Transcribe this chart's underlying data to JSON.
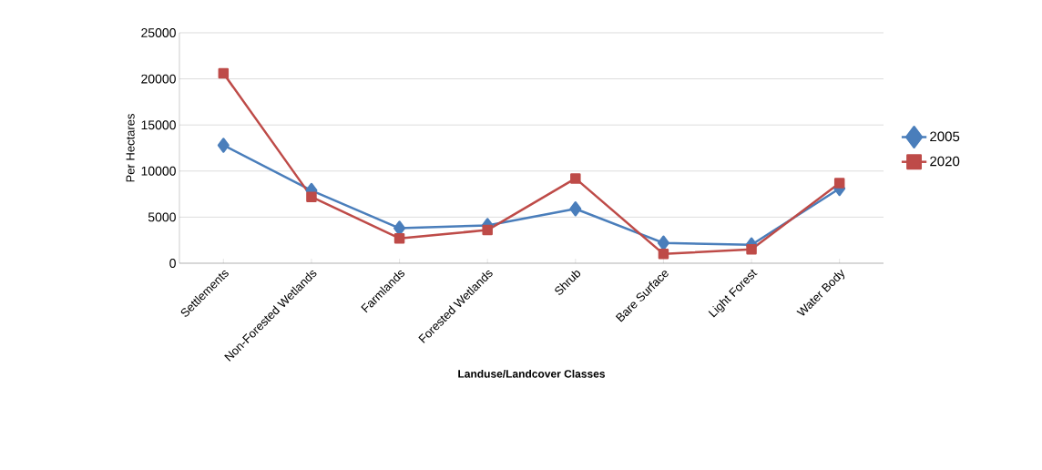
{
  "chart_data": {
    "type": "line",
    "xlabel": "Landuse/Landcover Classes",
    "ylabel": "Per Hectares",
    "categories": [
      "Settlements",
      "Non-Forested Wetlands",
      "Farmlands",
      "Forested Wetlands",
      "Shrub",
      "Bare Surface",
      "Light Forest",
      "Water Body"
    ],
    "series": [
      {
        "name": "2005",
        "color": "#4a7ebb",
        "marker": "diamond",
        "values": [
          12800,
          7900,
          3800,
          4100,
          5900,
          2200,
          2000,
          8100
        ]
      },
      {
        "name": "2020",
        "color": "#be4b48",
        "marker": "square",
        "values": [
          20600,
          7200,
          2700,
          3600,
          9200,
          1000,
          1500,
          8700
        ]
      }
    ],
    "ylim": [
      0,
      25000
    ],
    "yticks": [
      0,
      5000,
      10000,
      15000,
      20000,
      25000
    ],
    "grid": "y",
    "legend": "right"
  }
}
